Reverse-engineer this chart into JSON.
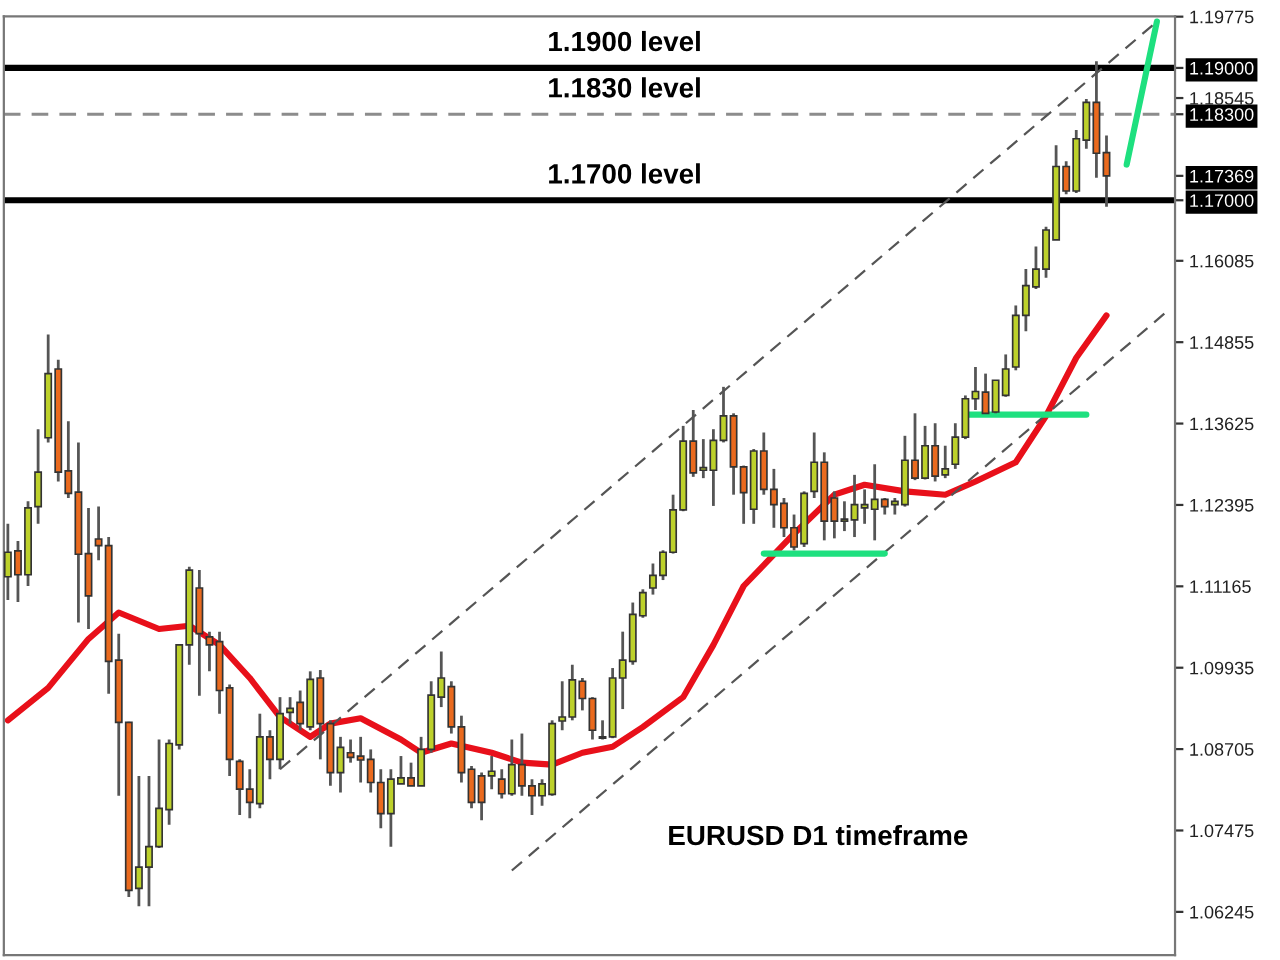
{
  "chart_data": {
    "type": "candlestick",
    "categories": [
      null,
      null,
      null,
      null,
      null,
      null,
      null,
      null,
      null,
      null,
      null,
      null,
      null,
      null,
      null,
      null,
      null,
      null,
      null,
      null,
      null,
      null,
      null,
      null,
      null,
      null,
      null,
      null,
      null,
      null,
      null,
      null,
      null,
      null,
      null,
      null,
      null,
      null,
      null,
      null,
      null,
      null,
      null,
      null,
      null,
      null,
      null,
      null,
      null,
      null,
      null,
      null,
      null,
      null,
      null,
      null,
      null,
      null,
      null,
      null,
      null,
      null,
      null,
      null,
      null,
      null,
      null,
      null,
      null,
      null,
      null,
      null,
      null,
      null,
      null,
      null,
      null,
      null,
      null,
      null,
      null,
      null,
      null,
      null,
      null,
      null,
      null,
      null,
      null,
      null,
      null,
      null,
      null,
      null,
      null,
      null,
      null,
      null,
      null,
      null,
      null,
      null,
      null,
      null,
      null,
      null,
      null,
      null,
      null,
      null,
      null,
      null,
      null,
      null,
      null,
      null
    ],
    "ohlc": [
      [
        1.1131,
        1.1211,
        1.1096,
        1.1168
      ],
      [
        1.117,
        1.1185,
        1.1093,
        1.1134
      ],
      [
        1.1134,
        1.1245,
        1.1117,
        1.1235
      ],
      [
        1.1237,
        1.1354,
        1.1211,
        1.1289
      ],
      [
        1.1341,
        1.1497,
        1.1334,
        1.1438
      ],
      [
        1.1445,
        1.1459,
        1.1275,
        1.1289
      ],
      [
        1.1291,
        1.1366,
        1.125,
        1.1257
      ],
      [
        1.1259,
        1.1334,
        1.1062,
        1.1165
      ],
      [
        1.1166,
        1.1235,
        1.1052,
        1.1102
      ],
      [
        1.1188,
        1.1237,
        1.1156,
        1.1178
      ],
      [
        1.1178,
        1.1191,
        1.0954,
        1.1003
      ],
      [
        1.1005,
        1.1045,
        1.08,
        1.0911
      ],
      [
        1.0911,
        1.0912,
        1.0647,
        1.0657
      ],
      [
        1.066,
        1.083,
        1.0633,
        1.0692
      ],
      [
        1.0692,
        1.083,
        1.0633,
        1.0723
      ],
      [
        1.0723,
        1.0885,
        1.0721,
        1.0781
      ],
      [
        1.0779,
        1.0885,
        1.0756,
        1.0879
      ],
      [
        1.0877,
        1.1028,
        1.087,
        1.1028
      ],
      [
        1.1028,
        1.1146,
        1.0998,
        1.1141
      ],
      [
        1.1114,
        1.1141,
        1.0951,
        1.1045
      ],
      [
        1.104,
        1.1048,
        1.0988,
        1.1028
      ],
      [
        1.1033,
        1.1048,
        1.0924,
        1.0959
      ],
      [
        1.0963,
        1.0968,
        1.083,
        1.0855
      ],
      [
        1.0852,
        1.0855,
        1.0771,
        1.081
      ],
      [
        1.081,
        1.084,
        1.0766,
        1.079
      ],
      [
        1.0788,
        1.0924,
        1.0781,
        1.0889
      ],
      [
        1.0889,
        1.0899,
        1.0825,
        1.0855
      ],
      [
        1.0855,
        1.0949,
        1.084,
        1.0924
      ],
      [
        1.0926,
        1.0949,
        1.0909,
        1.0932
      ],
      [
        1.0941,
        1.0959,
        1.0899,
        1.0909
      ],
      [
        1.0904,
        1.0988,
        1.0899,
        1.0976
      ],
      [
        1.0978,
        1.099,
        1.0855,
        1.0909
      ],
      [
        1.0909,
        1.0914,
        1.0815,
        1.0835
      ],
      [
        1.0835,
        1.0889,
        1.0805,
        1.0873
      ],
      [
        1.0865,
        1.0885,
        1.085,
        1.0858
      ],
      [
        1.086,
        1.0889,
        1.082,
        1.0854
      ],
      [
        1.0855,
        1.087,
        1.0805,
        1.082
      ],
      [
        1.082,
        1.084,
        1.0751,
        1.0773
      ],
      [
        1.0773,
        1.084,
        1.0723,
        1.0825
      ],
      [
        1.0818,
        1.086,
        1.0818,
        1.0827
      ],
      [
        1.0827,
        1.085,
        1.0815,
        1.0815
      ],
      [
        1.0815,
        1.0889,
        1.0815,
        1.087
      ],
      [
        1.087,
        1.0973,
        1.0865,
        1.0952
      ],
      [
        1.0949,
        1.1018,
        1.0934,
        1.0978
      ],
      [
        1.0965,
        1.0973,
        1.0894,
        1.0904
      ],
      [
        1.0904,
        1.0921,
        1.082,
        1.0835
      ],
      [
        1.084,
        1.0845,
        1.0781,
        1.079
      ],
      [
        1.083,
        1.0835,
        1.0763,
        1.079
      ],
      [
        1.083,
        1.086,
        1.081,
        1.0837
      ],
      [
        1.0825,
        1.084,
        1.0796,
        1.0803
      ],
      [
        1.0803,
        1.0885,
        1.08,
        1.0847
      ],
      [
        1.0847,
        1.0894,
        1.08,
        1.0815
      ],
      [
        1.0815,
        1.0825,
        1.0771,
        1.08
      ],
      [
        1.08,
        1.0825,
        1.0785,
        1.0818
      ],
      [
        1.0802,
        1.0914,
        1.08,
        1.0909
      ],
      [
        1.0913,
        1.0973,
        1.0899,
        1.0919
      ],
      [
        1.0919,
        1.0998,
        1.0914,
        1.0975
      ],
      [
        1.0973,
        1.0978,
        1.0929,
        1.0947
      ],
      [
        1.0947,
        1.0949,
        1.0885,
        1.0899
      ],
      [
        1.0889,
        1.0914,
        1.0885,
        1.0887
      ],
      [
        1.0889,
        1.0993,
        1.0887,
        1.0978
      ],
      [
        1.0978,
        1.1048,
        1.0931,
        1.1005
      ],
      [
        1.1003,
        1.1092,
        1.0998,
        1.1074
      ],
      [
        1.1072,
        1.1112,
        1.1069,
        1.1107
      ],
      [
        1.1114,
        1.1151,
        1.1104,
        1.1133
      ],
      [
        1.1133,
        1.1171,
        1.1126,
        1.1168
      ],
      [
        1.1168,
        1.1255,
        1.1166,
        1.1232
      ],
      [
        1.1232,
        1.1359,
        1.123,
        1.1336
      ],
      [
        1.1336,
        1.1383,
        1.1282,
        1.1288
      ],
      [
        1.1292,
        1.1339,
        1.128,
        1.1296
      ],
      [
        1.1292,
        1.1354,
        1.1238,
        1.1337
      ],
      [
        1.1337,
        1.1418,
        1.1334,
        1.1374
      ],
      [
        1.1374,
        1.1378,
        1.1255,
        1.1297
      ],
      [
        1.1297,
        1.1299,
        1.1211,
        1.1258
      ],
      [
        1.1233,
        1.1324,
        1.1211,
        1.1321
      ],
      [
        1.1321,
        1.1349,
        1.1255,
        1.1263
      ],
      [
        1.1263,
        1.1294,
        1.1205,
        1.124
      ],
      [
        1.1242,
        1.125,
        1.1191,
        1.1205
      ],
      [
        1.1205,
        1.1225,
        1.1171,
        1.1176
      ],
      [
        1.1181,
        1.126,
        1.1176,
        1.1257
      ],
      [
        1.126,
        1.1349,
        1.125,
        1.1304
      ],
      [
        1.1304,
        1.1319,
        1.1186,
        1.1215
      ],
      [
        1.125,
        1.126,
        1.1189,
        1.1215
      ],
      [
        1.1215,
        1.1245,
        1.12,
        1.1218
      ],
      [
        1.1217,
        1.1285,
        1.1191,
        1.124
      ],
      [
        1.1235,
        1.1263,
        1.1211,
        1.124
      ],
      [
        1.1233,
        1.1301,
        1.1186,
        1.1248
      ],
      [
        1.1248,
        1.125,
        1.1225,
        1.1237
      ],
      [
        1.124,
        1.125,
        1.1225,
        1.1245
      ],
      [
        1.124,
        1.1344,
        1.1237,
        1.1307
      ],
      [
        1.1307,
        1.1378,
        1.1277,
        1.128
      ],
      [
        1.128,
        1.1359,
        1.1278,
        1.1329
      ],
      [
        1.1329,
        1.1363,
        1.1275,
        1.1283
      ],
      [
        1.1285,
        1.1329,
        1.128,
        1.1294
      ],
      [
        1.1301,
        1.1363,
        1.1294,
        1.1342
      ],
      [
        1.1342,
        1.1405,
        1.1339,
        1.14
      ],
      [
        1.14,
        1.1448,
        1.1383,
        1.1411
      ],
      [
        1.141,
        1.1438,
        1.1378,
        1.1378
      ],
      [
        1.138,
        1.1428,
        1.1378,
        1.1428
      ],
      [
        1.1405,
        1.1467,
        1.1403,
        1.1445
      ],
      [
        1.1448,
        1.1541,
        1.1443,
        1.1526
      ],
      [
        1.1526,
        1.1596,
        1.1502,
        1.1571
      ],
      [
        1.1569,
        1.163,
        1.1566,
        1.1596
      ],
      [
        1.1596,
        1.166,
        1.1583,
        1.1655
      ],
      [
        1.164,
        1.1783,
        1.164,
        1.1751
      ],
      [
        1.1751,
        1.1759,
        1.1709,
        1.1714
      ],
      [
        1.1714,
        1.1806,
        1.1711,
        1.1793
      ],
      [
        1.1791,
        1.1853,
        1.1778,
        1.1848
      ],
      [
        1.1848,
        1.191,
        1.1734,
        1.1771
      ],
      [
        1.1772,
        1.1798,
        1.169,
        1.17369
      ],
      null,
      null,
      null,
      null,
      null,
      null
    ],
    "colors": [
      "#bdd12b",
      "#ea6a1e",
      "#bdd12b",
      "#bdd12b",
      "#bdd12b",
      "#ea6a1e",
      "#ea6a1e",
      "#ea6a1e",
      "#ea6a1e",
      "#ea6a1e",
      "#ea6a1e",
      "#ea6a1e",
      "#ea6a1e",
      "#bdd12b",
      "#bdd12b",
      "#bdd12b",
      "#bdd12b",
      "#bdd12b",
      "#bdd12b",
      "#ea6a1e",
      "#ea6a1e",
      "#ea6a1e",
      "#ea6a1e",
      "#ea6a1e",
      "#ea6a1e",
      "#bdd12b",
      "#ea6a1e",
      "#bdd12b",
      "#bdd12b",
      "#ea6a1e",
      "#bdd12b",
      "#ea6a1e",
      "#ea6a1e",
      "#bdd12b",
      "#ea6a1e",
      "#ea6a1e",
      "#ea6a1e",
      "#ea6a1e",
      "#bdd12b",
      "#bdd12b",
      "#ea6a1e",
      "#bdd12b",
      "#bdd12b",
      "#bdd12b",
      "#ea6a1e",
      "#ea6a1e",
      "#ea6a1e",
      "#ea6a1e",
      "#bdd12b",
      "#ea6a1e",
      "#bdd12b",
      "#ea6a1e",
      "#ea6a1e",
      "#bdd12b",
      "#bdd12b",
      "#bdd12b",
      "#bdd12b",
      "#ea6a1e",
      "#ea6a1e",
      "#ea6a1e",
      "#bdd12b",
      "#bdd12b",
      "#bdd12b",
      "#bdd12b",
      "#bdd12b",
      "#bdd12b",
      "#bdd12b",
      "#bdd12b",
      "#ea6a1e",
      "#bdd12b",
      "#bdd12b",
      "#bdd12b",
      "#ea6a1e",
      "#ea6a1e",
      "#bdd12b",
      "#ea6a1e",
      "#ea6a1e",
      "#ea6a1e",
      "#ea6a1e",
      "#bdd12b",
      "#bdd12b",
      "#ea6a1e",
      "#ea6a1e",
      "#bdd12b",
      "#bdd12b",
      "#bdd12b",
      "#bdd12b",
      "#ea6a1e",
      "#bdd12b",
      "#bdd12b",
      "#ea6a1e",
      "#bdd12b",
      "#ea6a1e",
      "#bdd12b",
      "#bdd12b",
      "#bdd12b",
      "#bdd12b",
      "#ea6a1e",
      "#bdd12b",
      "#bdd12b",
      "#bdd12b",
      "#bdd12b",
      "#bdd12b",
      "#bdd12b",
      "#bdd12b",
      "#ea6a1e",
      "#bdd12b",
      "#bdd12b",
      "#ea6a1e",
      "#ea6a1e",
      null,
      null,
      null,
      null,
      null,
      null
    ],
    "series": [
      {
        "type": "line",
        "color": "#e8101a",
        "line_style": "solid",
        "values": [
          1.0914,
          null,
          null,
          null,
          1.0963,
          null,
          null,
          null,
          1.1037,
          null,
          null,
          1.1077,
          null,
          null,
          null,
          1.1052,
          null,
          null,
          1.1057,
          null,
          null,
          1.1028,
          null,
          null,
          1.0978,
          null,
          null,
          1.0919,
          null,
          null,
          1.0889,
          null,
          1.0909,
          null,
          null,
          1.0917,
          null,
          null,
          null,
          1.0885,
          null,
          1.0865,
          null,
          null,
          1.0879,
          null,
          null,
          null,
          1.0865,
          null,
          null,
          1.085,
          null,
          null,
          1.0847,
          null,
          null,
          1.0865,
          null,
          null,
          1.0874,
          null,
          null,
          1.0904,
          null,
          null,
          null,
          1.0949,
          null,
          null,
          1.1028,
          null,
          null,
          1.1117,
          null,
          null,
          null,
          null,
          1.1196,
          null,
          null,
          null,
          1.1255,
          null,
          null,
          1.127,
          null,
          null,
          null,
          1.126,
          null,
          null,
          null,
          1.1255,
          null,
          null,
          1.1275,
          null,
          null,
          null,
          1.1304,
          null,
          null,
          1.1374,
          null,
          null,
          1.1462,
          null,
          null,
          1.1526,
          null,
          null,
          null,
          null,
          null,
          null
        ]
      },
      {
        "type": "line",
        "color": "#555555",
        "line_style": "dashed",
        "values": [
          null,
          null,
          null,
          null,
          null,
          null,
          null,
          null,
          null,
          null,
          null,
          null,
          null,
          null,
          null,
          null,
          null,
          null,
          null,
          null,
          null,
          null,
          null,
          null,
          null,
          null,
          null,
          1.084,
          null,
          null,
          null,
          null,
          null,
          null,
          null,
          null,
          null,
          null,
          null,
          null,
          null,
          null,
          null,
          null,
          null,
          null,
          null,
          null,
          null,
          null,
          null,
          null,
          null,
          null,
          null,
          null,
          null,
          null,
          null,
          null,
          null,
          null,
          null,
          null,
          null,
          null,
          null,
          null,
          null,
          null,
          null,
          null,
          null,
          null,
          null,
          null,
          null,
          null,
          null,
          null,
          null,
          null,
          null,
          null,
          null,
          null,
          null,
          null,
          null,
          null,
          null,
          null,
          null,
          null,
          null,
          null,
          null,
          null,
          null,
          null,
          null,
          null,
          null,
          null,
          null,
          null,
          null,
          null,
          null,
          null,
          null,
          null,
          null,
          null,
          1.197,
          null
        ]
      },
      {
        "type": "line",
        "color": "#555555",
        "line_style": "dashed",
        "values": [
          null,
          null,
          null,
          null,
          null,
          null,
          null,
          null,
          null,
          null,
          null,
          null,
          null,
          null,
          null,
          null,
          null,
          null,
          null,
          null,
          null,
          null,
          null,
          null,
          null,
          null,
          null,
          null,
          null,
          null,
          null,
          null,
          null,
          null,
          null,
          null,
          null,
          null,
          null,
          null,
          null,
          null,
          null,
          null,
          null,
          null,
          null,
          null,
          null,
          null,
          1.0687,
          null,
          null,
          null,
          null,
          null,
          null,
          null,
          null,
          null,
          null,
          null,
          null,
          null,
          null,
          null,
          null,
          null,
          null,
          null,
          null,
          null,
          null,
          null,
          null,
          null,
          null,
          null,
          null,
          null,
          null,
          null,
          null,
          null,
          null,
          null,
          null,
          null,
          null,
          null,
          null,
          null,
          null,
          null,
          null,
          null,
          null,
          null,
          null,
          null,
          null,
          null,
          null,
          null,
          null,
          null,
          null,
          null,
          null,
          null,
          null,
          null,
          null,
          null,
          null,
          1.1532
        ]
      },
      {
        "type": "line",
        "color": "#1ee07f",
        "line_style": "solid",
        "values": [
          null,
          null,
          null,
          null,
          null,
          null,
          null,
          null,
          null,
          null,
          null,
          null,
          null,
          null,
          null,
          null,
          null,
          null,
          null,
          null,
          null,
          null,
          null,
          null,
          null,
          null,
          null,
          null,
          null,
          null,
          null,
          null,
          null,
          null,
          null,
          null,
          null,
          null,
          null,
          null,
          null,
          null,
          null,
          null,
          null,
          null,
          null,
          null,
          null,
          null,
          null,
          null,
          null,
          null,
          null,
          null,
          null,
          null,
          null,
          null,
          null,
          null,
          null,
          null,
          null,
          null,
          null,
          null,
          null,
          null,
          null,
          null,
          null,
          null,
          null,
          1.1166,
          null,
          null,
          null,
          null,
          null,
          null,
          null,
          null,
          null,
          null,
          null,
          1.1166,
          null,
          null,
          null,
          null,
          null,
          null,
          null,
          null,
          null,
          null,
          null,
          null,
          null,
          null,
          null,
          null,
          null,
          null,
          null,
          null,
          null,
          null,
          null,
          null,
          null,
          null,
          null,
          null
        ]
      },
      {
        "type": "line",
        "color": "#1ee07f",
        "line_style": "solid",
        "values": [
          null,
          null,
          null,
          null,
          null,
          null,
          null,
          null,
          null,
          null,
          null,
          null,
          null,
          null,
          null,
          null,
          null,
          null,
          null,
          null,
          null,
          null,
          null,
          null,
          null,
          null,
          null,
          null,
          null,
          null,
          null,
          null,
          null,
          null,
          null,
          null,
          null,
          null,
          null,
          null,
          null,
          null,
          null,
          null,
          null,
          null,
          null,
          null,
          null,
          null,
          null,
          null,
          null,
          null,
          null,
          null,
          null,
          null,
          null,
          null,
          null,
          null,
          null,
          null,
          null,
          null,
          null,
          null,
          null,
          null,
          null,
          null,
          null,
          null,
          null,
          null,
          null,
          null,
          null,
          null,
          null,
          null,
          null,
          null,
          null,
          null,
          null,
          null,
          null,
          null,
          null,
          null,
          null,
          null,
          null,
          1.1376,
          null,
          null,
          null,
          null,
          null,
          null,
          null,
          null,
          null,
          null,
          null,
          1.1376,
          null,
          null,
          null,
          null,
          null,
          null,
          null,
          null
        ]
      },
      {
        "type": "line",
        "color": "#1ee07f",
        "line_style": "solid",
        "values": [
          null,
          null,
          null,
          null,
          null,
          null,
          null,
          null,
          null,
          null,
          null,
          null,
          null,
          null,
          null,
          null,
          null,
          null,
          null,
          null,
          null,
          null,
          null,
          null,
          null,
          null,
          null,
          null,
          null,
          null,
          null,
          null,
          null,
          null,
          null,
          null,
          null,
          null,
          null,
          null,
          null,
          null,
          null,
          null,
          null,
          null,
          null,
          null,
          null,
          null,
          null,
          null,
          null,
          null,
          null,
          null,
          null,
          null,
          null,
          null,
          null,
          null,
          null,
          null,
          null,
          null,
          null,
          null,
          null,
          null,
          null,
          null,
          null,
          null,
          null,
          null,
          null,
          null,
          null,
          null,
          null,
          null,
          null,
          null,
          null,
          null,
          null,
          null,
          null,
          null,
          null,
          null,
          null,
          null,
          null,
          null,
          null,
          null,
          null,
          null,
          null,
          null,
          null,
          null,
          null,
          null,
          null,
          null,
          null,
          null,
          null,
          1.1754,
          null,
          null,
          1.197,
          null
        ]
      }
    ],
    "ylim": [
      1.0559,
      1.1978
    ],
    "yticks": [
      1.06245,
      1.07475,
      1.08705,
      1.09935,
      1.11165,
      1.12395,
      1.13625,
      1.14855,
      1.16085,
      {
        "value": 1.17,
        "label": "1.17000"
      },
      {
        "value": 1.17369,
        "label": "1.17369"
      },
      {
        "value": 1.183,
        "label": "1.18300"
      },
      1.18545,
      {
        "value": 1.19,
        "label": "1.19000"
      },
      1.19775
    ],
    "tick_labels": "y",
    "ref_lines": [
      {
        "axis": "y",
        "value": 1.19,
        "label": "1.1900 level",
        "color": "#000000",
        "line_style": "solid"
      },
      {
        "axis": "y",
        "value": 1.183,
        "label": "1.1830 level",
        "color": "#8c8c8c",
        "line_style": "dashed"
      },
      {
        "axis": "y",
        "value": 1.17,
        "label": "1.1700 level",
        "color": "#000000",
        "line_style": "solid"
      }
    ],
    "annotations": [
      "EURUSD D1 timeframe"
    ],
    "grid": false
  }
}
